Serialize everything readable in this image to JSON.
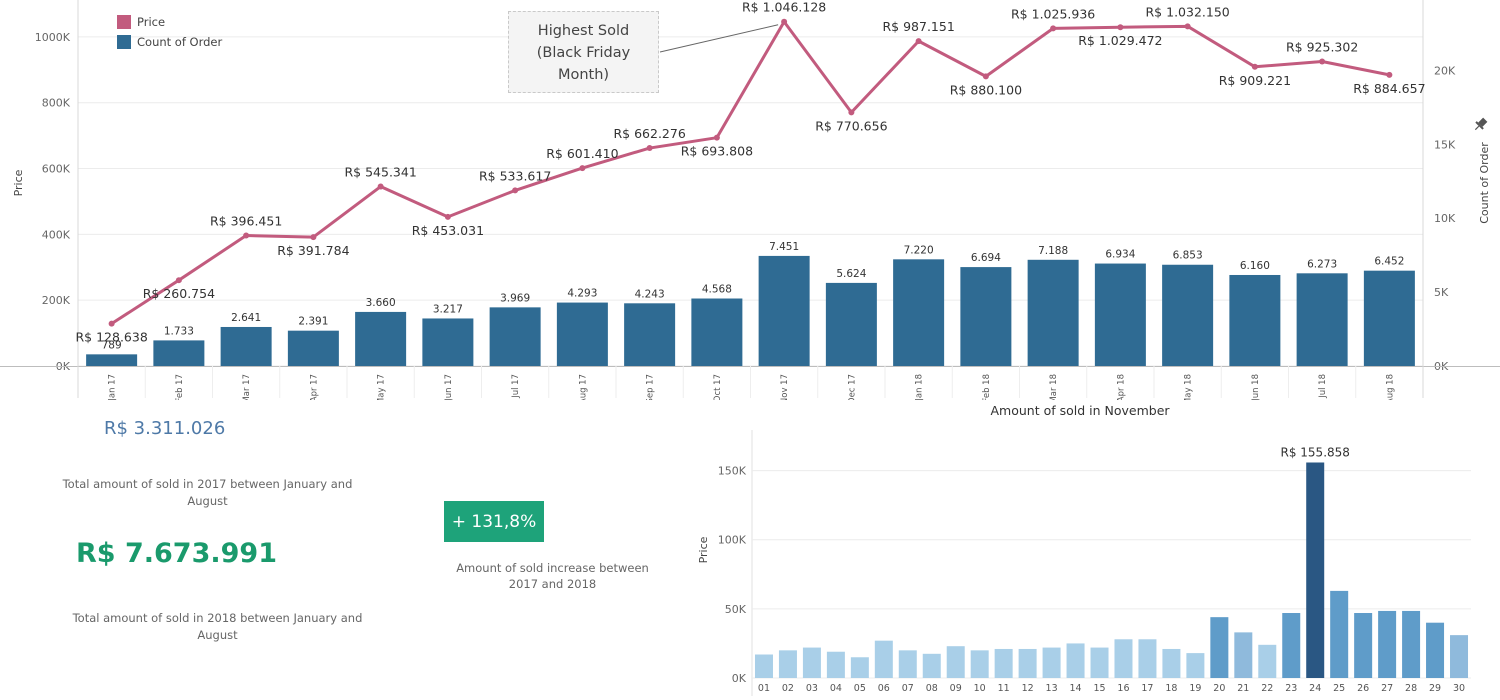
{
  "chart_data": [
    {
      "type": "bar+line",
      "categories": [
        "Jan 17",
        "Feb 17",
        "Mar 17",
        "Apr 17",
        "May 17",
        "Jun 17",
        "Jul 17",
        "Aug 17",
        "Sep 17",
        "Oct 17",
        "Nov 17",
        "Dec 17",
        "Jan 18",
        "Feb 18",
        "Mar 18",
        "Apr 18",
        "May 18",
        "Jun 18",
        "Jul 18",
        "Aug 18"
      ],
      "series": [
        {
          "name": "Price",
          "type": "line",
          "axis": "left",
          "values": [
            128638,
            260754,
            396451,
            391784,
            545341,
            453031,
            533617,
            601410,
            662276,
            693808,
            1046128,
            770656,
            987151,
            880100,
            1025936,
            1029472,
            1032150,
            909221,
            925302,
            884657
          ],
          "labels": [
            "R$ 128.638",
            "R$ 260.754",
            "R$ 396.451",
            "R$ 391.784",
            "R$ 545.341",
            "R$ 453.031",
            "R$ 533.617",
            "R$ 601.410",
            "R$ 662.276",
            "R$ 693.808",
            "R$ 1.046.128",
            "R$ 770.656",
            "R$ 987.151",
            "R$ 880.100",
            "R$ 1.025.936",
            "R$ 1.029.472",
            "R$ 1.032.150",
            "R$ 909.221",
            "R$ 925.302",
            "R$ 884.657"
          ]
        },
        {
          "name": "Count of Order",
          "type": "bar",
          "axis": "right",
          "values": [
            789,
            1733,
            2641,
            2391,
            3660,
            3217,
            3969,
            4293,
            4243,
            4568,
            7451,
            5624,
            7220,
            6694,
            7188,
            6934,
            6853,
            6160,
            6273,
            6452
          ],
          "labels": [
            "789",
            "1.733",
            "2.641",
            "2.391",
            "3.660",
            "3.217",
            "3.969",
            "4.293",
            "4.243",
            "4.568",
            "7.451",
            "5.624",
            "7.220",
            "6.694",
            "7.188",
            "6.934",
            "6.853",
            "6.160",
            "6.273",
            "6.452"
          ]
        }
      ],
      "ylabel": "Price",
      "y2label": "Count of Order",
      "ylim": [
        0,
        1100000
      ],
      "y2lim": [
        0,
        24500
      ],
      "yticks": [
        0,
        200000,
        400000,
        600000,
        800000,
        1000000
      ],
      "ytick_labels": [
        "0K",
        "200K",
        "400K",
        "600K",
        "800K",
        "1000K"
      ],
      "y2ticks": [
        0,
        5000,
        10000,
        15000,
        20000
      ],
      "y2tick_labels": [
        "0K",
        "5K",
        "10K",
        "15K",
        "20K"
      ],
      "legend": [
        {
          "name": "Price",
          "color": "#c25b7e"
        },
        {
          "name": "Count of Order",
          "color": "#2f6b93"
        }
      ],
      "legend_position": "top-left",
      "annotation": {
        "text": "Highest Sold\n(Black Friday\nMonth)",
        "target": "Nov 17"
      },
      "grid": true
    },
    {
      "type": "bar",
      "title": "Amount of sold in November",
      "ylabel": "Price",
      "categories": [
        "01",
        "02",
        "03",
        "04",
        "05",
        "06",
        "07",
        "08",
        "09",
        "10",
        "11",
        "12",
        "13",
        "14",
        "15",
        "16",
        "17",
        "18",
        "19",
        "20",
        "21",
        "22",
        "23",
        "24",
        "25",
        "26",
        "27",
        "28",
        "29",
        "30"
      ],
      "values": [
        17000,
        20000,
        22000,
        19000,
        15000,
        27000,
        20000,
        17500,
        23000,
        20000,
        21000,
        21000,
        22000,
        25000,
        22000,
        28000,
        28000,
        21000,
        18000,
        44000,
        33000,
        24000,
        47000,
        155858,
        63000,
        47000,
        48500,
        48500,
        40000,
        31000
      ],
      "labels": {
        "24": "R$ 155.858"
      },
      "ylim": [
        0,
        162000
      ],
      "yticks": [
        0,
        50000,
        100000,
        150000
      ],
      "ytick_labels": [
        "0K",
        "50K",
        "100K",
        "150K"
      ],
      "grid": true
    }
  ],
  "kpis": {
    "total_2017_value": "R$ 3.311.026",
    "total_2017_label": "Total amount of sold in 2017 between January and August",
    "total_2018_value": "R$ 7.673.991",
    "total_2018_label": "Total amount of sold in 2018 between January and August",
    "increase_value": "+ 131,8%",
    "increase_label": "Amount of sold increase between 2017 and 2018"
  },
  "colors": {
    "price_line": "#c25b7e",
    "order_bar": "#2f6b93",
    "kpi_2017": "#4e79a7",
    "kpi_2018": "#1a9a6c",
    "increase_badge": "#1ea37a",
    "nov_low": "#a9cfe8",
    "nov_mid": "#5f9cc9",
    "nov_peak": "#2a5783"
  },
  "icons": [
    "pin-icon"
  ]
}
